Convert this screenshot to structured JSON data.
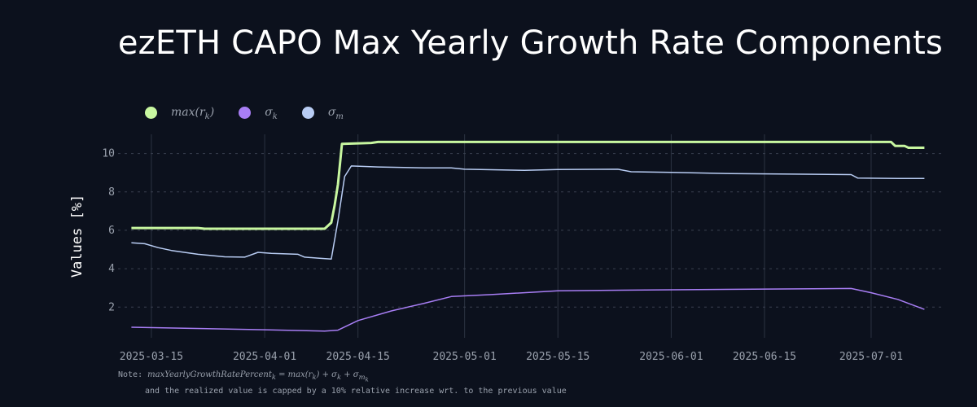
{
  "chart_data": {
    "type": "line",
    "title": "ezETH CAPO Max Yearly Growth Rate Components",
    "xlabel": "",
    "ylabel": "Values [%]",
    "ylim": [
      0.4,
      11.0
    ],
    "xlim": [
      "2025-03-10",
      "2025-07-12"
    ],
    "yticks": [
      2,
      4,
      6,
      8,
      10
    ],
    "xticks": [
      "2025-03-15",
      "2025-04-01",
      "2025-04-15",
      "2025-05-01",
      "2025-05-15",
      "2025-06-01",
      "2025-06-15",
      "2025-07-01"
    ],
    "grid": "x-solid, y-dashed",
    "legend": "top-left",
    "series": [
      {
        "name": "max(r_k)",
        "label_main": "max(r",
        "label_sub": "k",
        "label_tail": ")",
        "color": "#c8f7a0",
        "points": [
          [
            "2025-03-12",
            6.12
          ],
          [
            "2025-03-22",
            6.12
          ],
          [
            "2025-03-23",
            6.08
          ],
          [
            "2025-04-10",
            6.08
          ],
          [
            "2025-04-11",
            6.4
          ],
          [
            "2025-04-11.5",
            7.3
          ],
          [
            "2025-04-12",
            8.4
          ],
          [
            "2025-04-12.6",
            10.5
          ],
          [
            "2025-04-17",
            10.55
          ],
          [
            "2025-04-18",
            10.6
          ],
          [
            "2025-07-04",
            10.6
          ],
          [
            "2025-07-04.6",
            10.4
          ],
          [
            "2025-07-06",
            10.4
          ],
          [
            "2025-07-06.6",
            10.3
          ],
          [
            "2025-07-09",
            10.3
          ]
        ]
      },
      {
        "name": "σ_k",
        "label_main": "σ",
        "label_sub": "k",
        "label_tail": "",
        "color": "#a87ef5",
        "points": [
          [
            "2025-03-12",
            0.95
          ],
          [
            "2025-03-20",
            0.9
          ],
          [
            "2025-04-01",
            0.82
          ],
          [
            "2025-04-10",
            0.75
          ],
          [
            "2025-04-12",
            0.8
          ],
          [
            "2025-04-15",
            1.3
          ],
          [
            "2025-04-20",
            1.8
          ],
          [
            "2025-04-25",
            2.2
          ],
          [
            "2025-04-29",
            2.55
          ],
          [
            "2025-05-05",
            2.65
          ],
          [
            "2025-05-15",
            2.85
          ],
          [
            "2025-06-01",
            2.9
          ],
          [
            "2025-06-20",
            2.95
          ],
          [
            "2025-06-28",
            2.97
          ],
          [
            "2025-07-01",
            2.75
          ],
          [
            "2025-07-05",
            2.4
          ],
          [
            "2025-07-09",
            1.88
          ]
        ]
      },
      {
        "name": "σ_m",
        "label_main": "σ",
        "label_sub": "m",
        "label_tail": "",
        "color": "#b9cdf4",
        "points": [
          [
            "2025-03-12",
            5.35
          ],
          [
            "2025-03-14",
            5.3
          ],
          [
            "2025-03-16",
            5.1
          ],
          [
            "2025-03-18",
            4.95
          ],
          [
            "2025-03-22",
            4.75
          ],
          [
            "2025-03-26",
            4.62
          ],
          [
            "2025-03-29",
            4.6
          ],
          [
            "2025-03-31",
            4.85
          ],
          [
            "2025-04-02",
            4.8
          ],
          [
            "2025-04-06",
            4.75
          ],
          [
            "2025-04-07",
            4.6
          ],
          [
            "2025-04-09",
            4.55
          ],
          [
            "2025-04-11",
            4.5
          ],
          [
            "2025-04-12",
            6.5
          ],
          [
            "2025-04-13",
            8.8
          ],
          [
            "2025-04-14",
            9.35
          ],
          [
            "2025-04-18",
            9.3
          ],
          [
            "2025-04-25",
            9.25
          ],
          [
            "2025-04-29",
            9.25
          ],
          [
            "2025-05-01",
            9.18
          ],
          [
            "2025-05-10",
            9.12
          ],
          [
            "2025-05-15",
            9.17
          ],
          [
            "2025-05-24",
            9.18
          ],
          [
            "2025-05-26",
            9.05
          ],
          [
            "2025-06-01",
            9.02
          ],
          [
            "2025-06-10",
            8.95
          ],
          [
            "2025-06-28",
            8.9
          ],
          [
            "2025-06-29",
            8.72
          ],
          [
            "2025-07-05",
            8.7
          ],
          [
            "2025-07-09",
            8.7
          ]
        ]
      }
    ]
  },
  "note": {
    "prefix": "Note:",
    "formula": "maxYearlyGrowthRatePercent",
    "formula_sub": "k",
    "formula_eq": " = max(r",
    "formula_eq_sub": "k",
    "formula_rest": ") + σ",
    "formula_rest_sub": "k",
    "formula_plus": " + σ",
    "formula_plus_sub": "m",
    "formula_plus_subsub": "k",
    "line2": "and the realized value is capped by a 10% relative increase wrt. to the previous value"
  }
}
